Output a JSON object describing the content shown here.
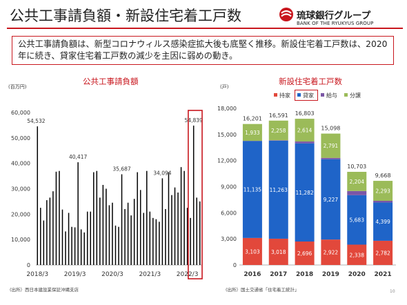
{
  "slide": {
    "title": "公共工事請負額・新設住宅着工戸数",
    "summary": "公共工事請負額は、新型コロナウィルス感染症拡大後も底堅く推移。新設住宅着工戸数は、2020年に続き、貸家住宅着工戸数の減少を主因に弱めの動き。",
    "page_number": "10"
  },
  "logo": {
    "name": "琉球銀行グループ",
    "english": "BANK OF THE RYUKYUS GROUP",
    "accent_color": "#c8161d"
  },
  "chart_data": [
    {
      "type": "bar",
      "title": "公共工事請負額",
      "unit": "(百万円)",
      "source": "(出所）西日本建設業保証沖縄支店",
      "bar_color": "#000000",
      "ylim": [
        0,
        60000
      ],
      "yticks": [
        "0",
        "10,000",
        "20,000",
        "30,000",
        "40,000",
        "50,000",
        "60,000"
      ],
      "xticks": [
        "2018/3",
        "2019/3",
        "2020/3",
        "2021/3",
        "2022/3"
      ],
      "xtick_indices": [
        0,
        12,
        24,
        36,
        48
      ],
      "values": [
        54532,
        22500,
        17500,
        25500,
        26500,
        29000,
        36700,
        37000,
        21800,
        13200,
        20500,
        15000,
        14800,
        40417,
        14000,
        12800,
        21000,
        21000,
        36500,
        37000,
        26500,
        31500,
        30000,
        23500,
        24500,
        15500,
        15000,
        35687,
        22000,
        24500,
        19500,
        26000,
        36500,
        29500,
        20500,
        37000,
        21000,
        18500,
        18000,
        17000,
        34094,
        22000,
        36500,
        27500,
        30500,
        28500,
        38500,
        37000,
        22500,
        18500,
        54839,
        26500,
        25000
      ],
      "data_labels": [
        {
          "index": 0,
          "text": "54,532"
        },
        {
          "index": 13,
          "text": "40,417"
        },
        {
          "index": 27,
          "text": "35,687"
        },
        {
          "index": 40,
          "text": "34,094"
        },
        {
          "index": 50,
          "text": "54,839"
        }
      ],
      "highlight_range": [
        49,
        52
      ],
      "highlight_color": "#c8161d"
    },
    {
      "type": "bar",
      "stacked": true,
      "title": "新設住宅着工戸数",
      "unit": "(戸)",
      "source": "(出所）国土交通省「住宅着工統計」",
      "ylim": [
        0,
        18000
      ],
      "yticks": [
        "0",
        "3,000",
        "6,000",
        "9,000",
        "12,000",
        "15,000",
        "18,000"
      ],
      "categories": [
        "2016",
        "2017",
        "2018",
        "2019",
        "2020",
        "2021"
      ],
      "series": [
        {
          "name": "持家",
          "color": "#e2483b",
          "values": [
            3103,
            3018,
            2696,
            2922,
            2338,
            2782
          ]
        },
        {
          "name": "貸家",
          "color": "#1f64c8",
          "values": [
            11135,
            11263,
            11282,
            9227,
            5683,
            4399
          ]
        },
        {
          "name": "給与",
          "color": "#7b56a6",
          "values": [
            30,
            52,
            211,
            158,
            478,
            194
          ]
        },
        {
          "name": "分譲",
          "color": "#9bbb59",
          "values": [
            1933,
            2258,
            2614,
            2791,
            2204,
            2293
          ]
        }
      ],
      "segment_labels": [
        [
          "3,103",
          "11,135",
          "",
          "1,933"
        ],
        [
          "3,018",
          "11,263",
          "",
          "2,258"
        ],
        [
          "2,696",
          "11,282",
          "",
          "2,614"
        ],
        [
          "2,922",
          "9,227",
          "",
          "2,791"
        ],
        [
          "2,338",
          "5,683",
          "",
          "2,204"
        ],
        [
          "2,782",
          "4,399",
          "",
          "2,293"
        ]
      ],
      "totals": [
        "16,201",
        "16,591",
        "16,803",
        "15,098",
        "10,703",
        "9,668"
      ],
      "legend_highlight": "貸家",
      "legend_position": "top-right"
    }
  ]
}
